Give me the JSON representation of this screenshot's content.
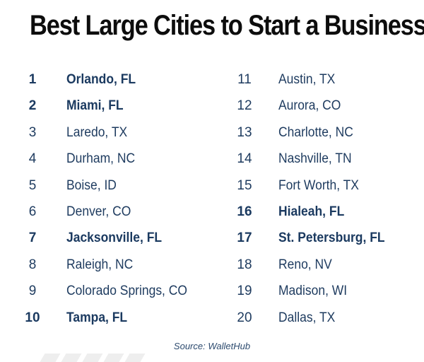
{
  "title": "Best Large Cities to Start a Business",
  "source": "Source: WalletHub",
  "colors": {
    "text": "#1e3b5f",
    "title": "#0d0d0d",
    "background": "#ffffff"
  },
  "left_column": [
    {
      "rank": "1",
      "city": "Orlando, FL",
      "highlight": true
    },
    {
      "rank": "2",
      "city": "Miami, FL",
      "highlight": true
    },
    {
      "rank": "3",
      "city": "Laredo, TX",
      "highlight": false
    },
    {
      "rank": "4",
      "city": "Durham, NC",
      "highlight": false
    },
    {
      "rank": "5",
      "city": "Boise, ID",
      "highlight": false
    },
    {
      "rank": "6",
      "city": "Denver, CO",
      "highlight": false
    },
    {
      "rank": "7",
      "city": "Jacksonville, FL",
      "highlight": true
    },
    {
      "rank": "8",
      "city": "Raleigh, NC",
      "highlight": false
    },
    {
      "rank": "9",
      "city": "Colorado Springs, CO",
      "highlight": false
    },
    {
      "rank": "10",
      "city": "Tampa, FL",
      "highlight": true
    }
  ],
  "right_column": [
    {
      "rank": "11",
      "city": "Austin, TX",
      "highlight": false
    },
    {
      "rank": "12",
      "city": "Aurora, CO",
      "highlight": false
    },
    {
      "rank": "13",
      "city": "Charlotte, NC",
      "highlight": false
    },
    {
      "rank": "14",
      "city": "Nashville, TN",
      "highlight": false
    },
    {
      "rank": "15",
      "city": "Fort Worth, TX",
      "highlight": false
    },
    {
      "rank": "16",
      "city": "Hialeah, FL",
      "highlight": true
    },
    {
      "rank": "17",
      "city": "St. Petersburg, FL",
      "highlight": true
    },
    {
      "rank": "18",
      "city": "Reno, NV",
      "highlight": false
    },
    {
      "rank": "19",
      "city": "Madison, WI",
      "highlight": false
    },
    {
      "rank": "20",
      "city": "Dallas, TX",
      "highlight": false
    }
  ]
}
